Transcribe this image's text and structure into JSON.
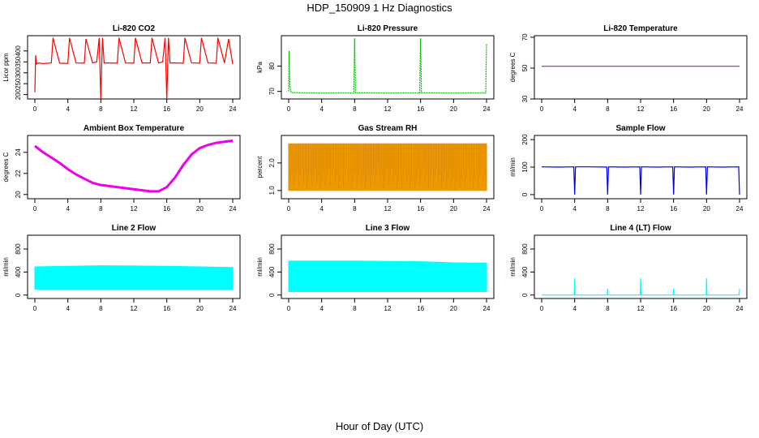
{
  "figure": {
    "title": "HDP_150909  1 Hz Diagnostics",
    "xlabel": "Hour of Day (UTC)"
  },
  "chart_data": [
    {
      "type": "line",
      "title": "Li-820 CO2",
      "ylabel": "Licor ppm",
      "color": "#ff0000",
      "xlim": [
        0,
        24
      ],
      "ylim": [
        180,
        470
      ],
      "xticks": [
        "0",
        "4",
        "8",
        "12",
        "16",
        "20",
        "24"
      ],
      "yticks": [
        "200",
        "250",
        "300",
        "350",
        "400"
      ],
      "ytick_values": [
        200,
        250,
        300,
        350,
        400
      ],
      "x": [
        0,
        0.1,
        0.2,
        0.4,
        1,
        2,
        2.2,
        3,
        4,
        4.2,
        5,
        6,
        6.2,
        7,
        7.5,
        7.8,
        8,
        8.2,
        8.4,
        9,
        10,
        10.2,
        11,
        12,
        12.2,
        13,
        14,
        14.2,
        15,
        15.5,
        15.8,
        16,
        16.2,
        16.4,
        17,
        18,
        18.2,
        19,
        20,
        20.2,
        21,
        22,
        22.2,
        23,
        23.5,
        24
      ],
      "y": [
        210,
        380,
        340,
        345,
        342,
        345,
        460,
        344,
        343,
        460,
        345,
        344,
        455,
        345,
        350,
        460,
        180,
        460,
        345,
        345,
        344,
        460,
        345,
        344,
        460,
        345,
        345,
        460,
        345,
        350,
        460,
        180,
        460,
        345,
        345,
        344,
        460,
        345,
        344,
        460,
        345,
        344,
        460,
        345,
        455,
        340
      ]
    },
    {
      "type": "line",
      "title": "Li-820 Pressure",
      "ylabel": "kPa",
      "color": "#00bb00",
      "xlim": [
        0,
        24
      ],
      "ylim": [
        67,
        92
      ],
      "xticks": [
        "0",
        "4",
        "8",
        "12",
        "16",
        "20",
        "24"
      ],
      "yticks": [
        "70",
        "80"
      ],
      "ytick_values": [
        70,
        80
      ],
      "x": [
        0,
        0.05,
        0.15,
        0.3,
        2,
        4,
        6,
        7.9,
        8,
        8.1,
        10,
        12,
        14,
        15.9,
        16,
        16.1,
        18,
        20,
        22,
        23.9,
        24
      ],
      "y": [
        70,
        86,
        72,
        69.5,
        69.4,
        69.3,
        69.4,
        69.3,
        91,
        69.4,
        69.4,
        69.3,
        69.4,
        69.3,
        91,
        69.4,
        69.4,
        69.3,
        69.4,
        69.3,
        89
      ]
    },
    {
      "type": "line",
      "title": "Li-820 Temperature",
      "ylabel": "degrees C",
      "color": "#cc00cc",
      "xlim": [
        0,
        24
      ],
      "ylim": [
        30,
        71
      ],
      "xticks": [
        "0",
        "4",
        "8",
        "12",
        "16",
        "20",
        "24"
      ],
      "yticks": [
        "30",
        "50",
        "70"
      ],
      "ytick_values": [
        30,
        50,
        70
      ],
      "x": [
        0,
        24
      ],
      "y": [
        51.2,
        51.2
      ]
    },
    {
      "type": "line",
      "title": "Ambient Box Temperature",
      "ylabel": "degrees C",
      "color": "#ee00ee",
      "xlim": [
        0,
        24
      ],
      "ylim": [
        19.6,
        25.6
      ],
      "xticks": [
        "0",
        "4",
        "8",
        "12",
        "16",
        "20",
        "24"
      ],
      "yticks": [
        "20",
        "22",
        "24"
      ],
      "ytick_values": [
        20,
        22,
        24
      ],
      "x": [
        0,
        1,
        2,
        3,
        4,
        5,
        6,
        7,
        8,
        9,
        10,
        11,
        12,
        13,
        14,
        15,
        16,
        17,
        18,
        19,
        20,
        21,
        22,
        23,
        24
      ],
      "y": [
        24.6,
        24.0,
        23.5,
        23.0,
        22.4,
        21.9,
        21.5,
        21.1,
        20.9,
        20.8,
        20.7,
        20.6,
        20.5,
        20.4,
        20.3,
        20.3,
        20.7,
        21.6,
        22.8,
        23.8,
        24.4,
        24.7,
        24.9,
        25.0,
        25.1
      ]
    },
    {
      "type": "line",
      "title": "Gas Stream RH",
      "ylabel": "percent",
      "color": "#ee9900",
      "xlim": [
        0,
        24
      ],
      "ylim": [
        0.7,
        3.0
      ],
      "xticks": [
        "0",
        "4",
        "8",
        "12",
        "16",
        "20",
        "24"
      ],
      "yticks": [
        "1.0",
        "2.0"
      ],
      "ytick_values": [
        1.0,
        2.0
      ],
      "x": [
        0,
        24
      ],
      "y_band_low": [
        1.0,
        1.0
      ],
      "y_band_high": [
        2.7,
        2.7
      ]
    },
    {
      "type": "line",
      "title": "Sample Flow",
      "ylabel": "ml/min",
      "color": "#0000ee",
      "xlim": [
        0,
        24
      ],
      "ylim": [
        -15,
        215
      ],
      "xticks": [
        "0",
        "4",
        "8",
        "12",
        "16",
        "20",
        "24"
      ],
      "yticks": [
        "0",
        "100",
        "200"
      ],
      "ytick_values": [
        0,
        100,
        200
      ],
      "x": [
        0,
        2,
        3.9,
        4,
        4.1,
        6,
        7.9,
        8,
        8.1,
        10,
        11.9,
        12,
        12.1,
        14,
        15.9,
        16,
        16.1,
        18,
        19.9,
        20,
        20.1,
        22,
        23.9,
        24
      ],
      "y": [
        101,
        100,
        101,
        0,
        101,
        101,
        100,
        0,
        101,
        100,
        101,
        0,
        101,
        100,
        101,
        0,
        101,
        100,
        101,
        0,
        101,
        100,
        101,
        0
      ]
    },
    {
      "type": "area",
      "title": "Line 2 Flow",
      "ylabel": "ml/min",
      "color": "#00ffff",
      "xlim": [
        0,
        24
      ],
      "ylim": [
        -60,
        1040
      ],
      "xticks": [
        "0",
        "4",
        "8",
        "12",
        "16",
        "20",
        "24"
      ],
      "yticks": [
        "0",
        "400",
        "800"
      ],
      "ytick_values": [
        0,
        400,
        800
      ],
      "x": [
        0,
        4,
        8,
        12,
        16,
        20,
        24
      ],
      "y_band_low": [
        100,
        100,
        100,
        100,
        100,
        100,
        100
      ],
      "y_band_high": [
        490,
        500,
        510,
        505,
        500,
        490,
        480
      ]
    },
    {
      "type": "area",
      "title": "Line 3 Flow",
      "ylabel": "ml/min",
      "color": "#00ffff",
      "xlim": [
        0,
        24
      ],
      "ylim": [
        -60,
        1040
      ],
      "xticks": [
        "0",
        "4",
        "8",
        "12",
        "16",
        "20",
        "24"
      ],
      "yticks": [
        "0",
        "400",
        "800"
      ],
      "ytick_values": [
        0,
        400,
        800
      ],
      "x": [
        0,
        4,
        8,
        12,
        16,
        20,
        24
      ],
      "y_band_low": [
        60,
        60,
        60,
        60,
        60,
        60,
        60
      ],
      "y_band_high": [
        590,
        590,
        590,
        585,
        580,
        560,
        555
      ]
    },
    {
      "type": "line",
      "title": "Line 4 (LT) Flow",
      "ylabel": "ml/min",
      "color": "#00ffff",
      "xlim": [
        0,
        24
      ],
      "ylim": [
        -60,
        1040
      ],
      "xticks": [
        "0",
        "4",
        "8",
        "12",
        "16",
        "20",
        "24"
      ],
      "yticks": [
        "0",
        "400",
        "800"
      ],
      "ytick_values": [
        0,
        400,
        800
      ],
      "x": [
        0,
        3.95,
        4,
        4.05,
        7.95,
        8,
        8.05,
        11.95,
        12,
        12.05,
        15.95,
        16,
        16.05,
        19.95,
        20,
        20.05,
        23.95,
        24
      ],
      "y": [
        0,
        0,
        290,
        0,
        0,
        110,
        0,
        0,
        290,
        0,
        0,
        110,
        0,
        0,
        290,
        0,
        0,
        110
      ]
    }
  ]
}
